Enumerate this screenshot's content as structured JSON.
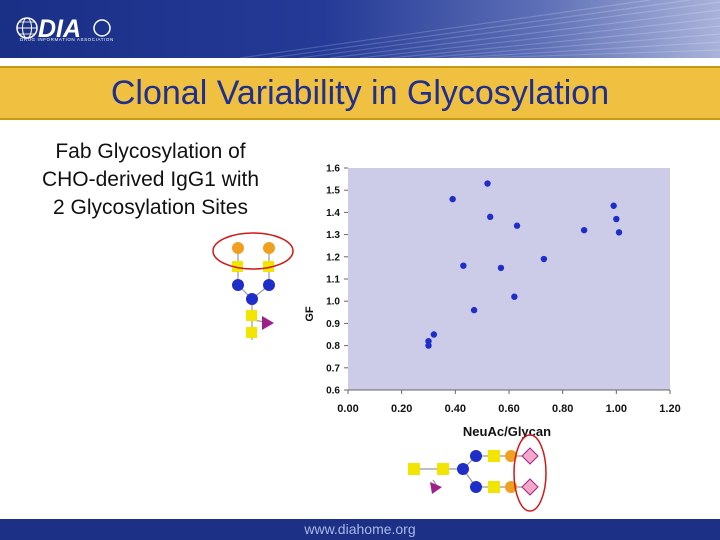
{
  "header": {
    "logo_text": "DIA",
    "logo_tagline": "DRUG INFORMATION ASSOCIATION"
  },
  "slide": {
    "title": "Clonal Variability in Glycosylation",
    "subtitle_lines": [
      "Fab Glycosylation of",
      "CHO-derived IgG1 with",
      "2 Glycosylation Sites"
    ]
  },
  "footer": {
    "url": "www.diahome.org"
  },
  "colors": {
    "header_blue": "#1c3186",
    "title_bar": "#f0c040",
    "title_text": "#1f2f8f",
    "plot_bg": "#cccbe8",
    "marker": "#1f2ec8",
    "circle_highlight": "#d01818",
    "glycan_galactose": "#f0a020",
    "glycan_glcnac": "#f2e600",
    "glycan_mannose": "#1f2ec8",
    "glycan_fucose": "#a0208a",
    "glycan_neuac": "#f4a8c8"
  },
  "chart_data": {
    "type": "scatter",
    "xlabel": "NeuAc/Glycan",
    "ylabel": "GF",
    "xlim": [
      0.0,
      1.2
    ],
    "ylim": [
      0.6,
      1.6
    ],
    "x_ticks": [
      "0.00",
      "0.20",
      "0.40",
      "0.60",
      "0.80",
      "1.00",
      "1.20"
    ],
    "y_ticks": [
      "0.6",
      "0.7",
      "0.8",
      "0.9",
      "1.0",
      "1.1",
      "1.2",
      "1.3",
      "1.4",
      "1.5",
      "1.6"
    ],
    "grid": false,
    "legend": "none",
    "points": [
      {
        "x": 0.3,
        "y": 0.8
      },
      {
        "x": 0.3,
        "y": 0.82
      },
      {
        "x": 0.32,
        "y": 0.85
      },
      {
        "x": 0.39,
        "y": 1.46
      },
      {
        "x": 0.43,
        "y": 1.16
      },
      {
        "x": 0.47,
        "y": 0.96
      },
      {
        "x": 0.52,
        "y": 1.53
      },
      {
        "x": 0.53,
        "y": 1.38
      },
      {
        "x": 0.57,
        "y": 1.15
      },
      {
        "x": 0.62,
        "y": 1.02
      },
      {
        "x": 0.63,
        "y": 1.34
      },
      {
        "x": 0.73,
        "y": 1.19
      },
      {
        "x": 0.88,
        "y": 1.32
      },
      {
        "x": 0.99,
        "y": 1.43
      },
      {
        "x": 1.0,
        "y": 1.37
      },
      {
        "x": 1.01,
        "y": 1.31
      }
    ]
  }
}
